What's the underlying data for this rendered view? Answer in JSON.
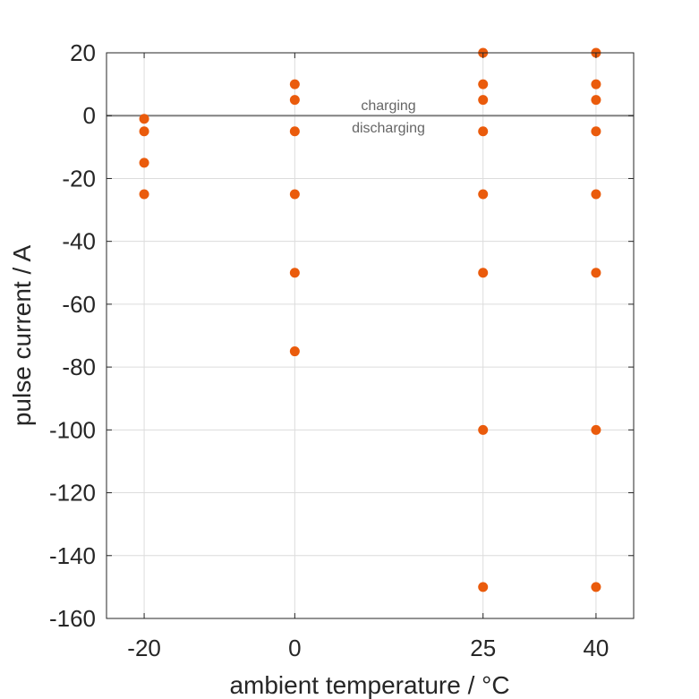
{
  "chart_data": {
    "type": "scatter",
    "title": "",
    "xlabel": "ambient temperature / °C",
    "ylabel": "pulse current / A",
    "xlim": [
      -25,
      45
    ],
    "ylim": [
      -160,
      20
    ],
    "xticks": [
      -20,
      0,
      25,
      40
    ],
    "xtick_labels": [
      "-20",
      "0",
      "25",
      "40"
    ],
    "yticks": [
      20,
      0,
      -20,
      -40,
      -60,
      -80,
      -100,
      -120,
      -140,
      -160
    ],
    "ytick_labels": [
      "20",
      "0",
      "-20",
      "-40",
      "-60",
      "-80",
      "-100",
      "-120",
      "-140",
      "-160"
    ],
    "grid": true,
    "reference_line": {
      "y": 0,
      "color": "#808080"
    },
    "annotations": {
      "above": "charging",
      "below": "discharging"
    },
    "marker_color": "#EA5B0C",
    "points": [
      {
        "x": -20,
        "y": -1
      },
      {
        "x": -20,
        "y": -5
      },
      {
        "x": -20,
        "y": -15
      },
      {
        "x": -20,
        "y": -25
      },
      {
        "x": 0,
        "y": 10
      },
      {
        "x": 0,
        "y": 5
      },
      {
        "x": 0,
        "y": -5
      },
      {
        "x": 0,
        "y": -25
      },
      {
        "x": 0,
        "y": -50
      },
      {
        "x": 0,
        "y": -75
      },
      {
        "x": 25,
        "y": 20
      },
      {
        "x": 25,
        "y": 10
      },
      {
        "x": 25,
        "y": 5
      },
      {
        "x": 25,
        "y": -5
      },
      {
        "x": 25,
        "y": -25
      },
      {
        "x": 25,
        "y": -50
      },
      {
        "x": 25,
        "y": -100
      },
      {
        "x": 25,
        "y": -150
      },
      {
        "x": 40,
        "y": 20
      },
      {
        "x": 40,
        "y": 10
      },
      {
        "x": 40,
        "y": 5
      },
      {
        "x": 40,
        "y": -5
      },
      {
        "x": 40,
        "y": -25
      },
      {
        "x": 40,
        "y": -50
      },
      {
        "x": 40,
        "y": -100
      },
      {
        "x": 40,
        "y": -150
      }
    ]
  }
}
